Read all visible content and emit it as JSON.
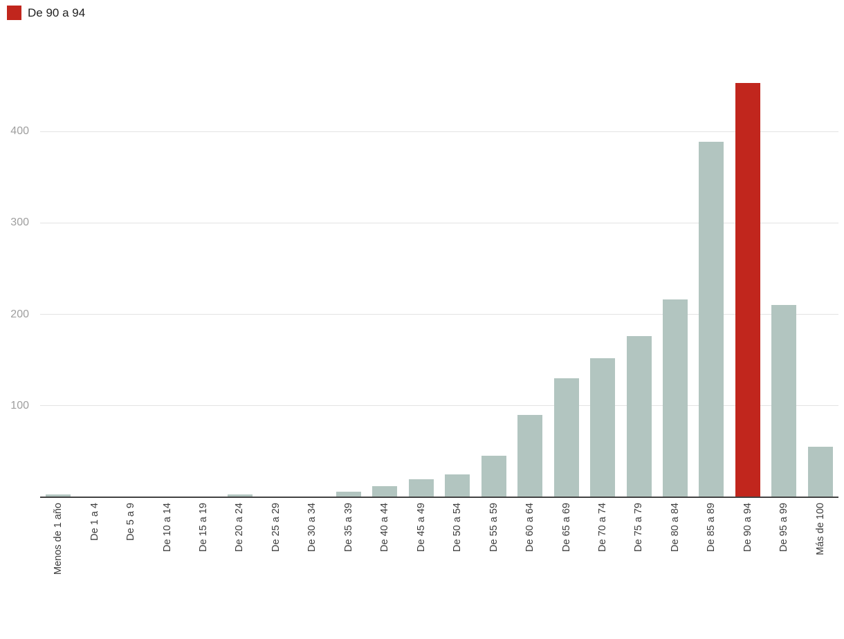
{
  "legend": {
    "label": "De 90 a 94",
    "color": "#c1261d"
  },
  "colors": {
    "bar": "#b2c5c0",
    "highlight": "#c1261d",
    "grid": "#e3e3e3",
    "axis": "#424242",
    "ytick_text": "#9e9e9e",
    "xtick_text": "#3c3c3c"
  },
  "chart_data": {
    "type": "bar",
    "title": "",
    "xlabel": "",
    "ylabel": "",
    "categories": [
      "Menos de 1 año",
      "De 1 a 4",
      "De 5 a 9",
      "De 10 a 14",
      "De 15 a 19",
      "De 20 a 24",
      "De 25 a 29",
      "De 30 a 34",
      "De 35 a 39",
      "De 40 a 44",
      "De 45 a 49",
      "De 50 a 54",
      "De 55 a 59",
      "De 60 a 64",
      "De 65 a 69",
      "De 70 a 74",
      "De 75 a 79",
      "De 80 a 84",
      "De 85 a 89",
      "De 90 a 94",
      "De 95 a 99",
      "Más de 100"
    ],
    "values": [
      3,
      0,
      0,
      0,
      0,
      3,
      0,
      0,
      6,
      12,
      20,
      25,
      45,
      90,
      130,
      152,
      176,
      216,
      389,
      453,
      210,
      55
    ],
    "highlight_category": "De 90 a 94",
    "yticks": [
      100,
      200,
      300,
      400
    ],
    "ylim": [
      0,
      468
    ],
    "grid": true,
    "legend_position": "top-left"
  }
}
